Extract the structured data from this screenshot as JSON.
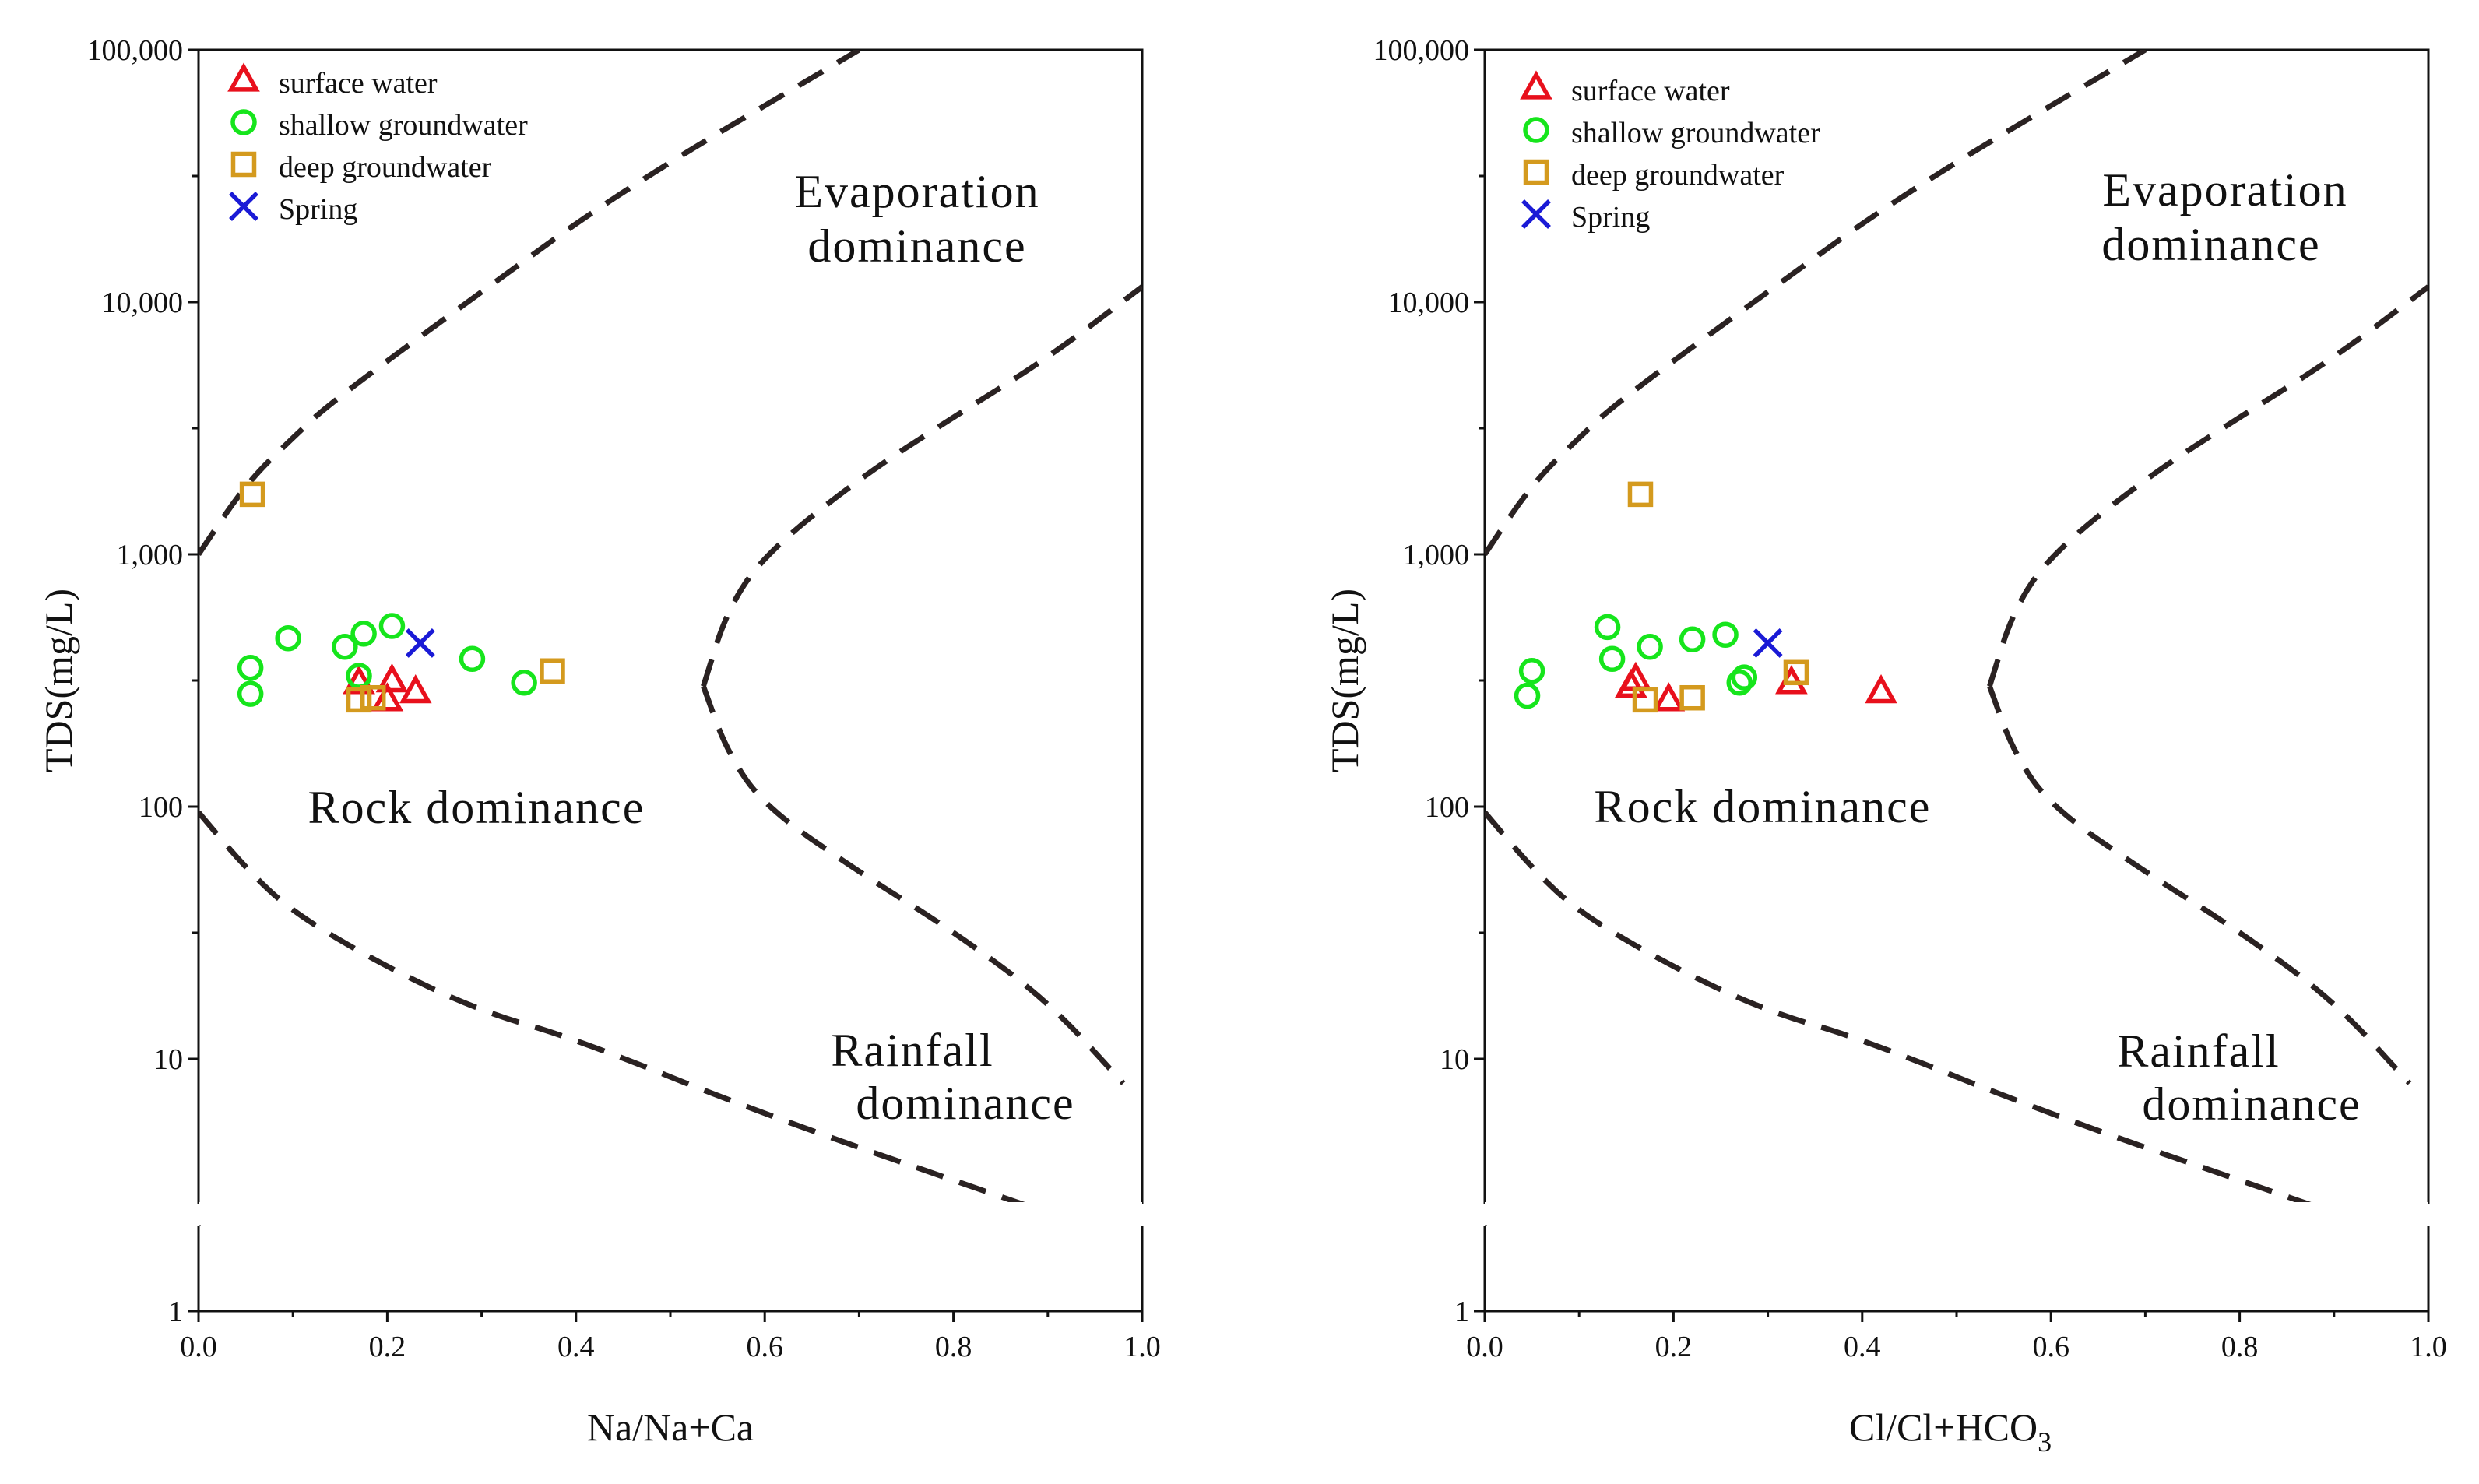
{
  "colors": {
    "surface": "#e8101c",
    "shallow": "#16e51c",
    "deep": "#d49a1e",
    "spring": "#1a1ad6",
    "boundary": "#2a2222",
    "axis": "#111111"
  },
  "chart_data": [
    {
      "type": "scatter",
      "x_log": false,
      "y_log": true,
      "xlim": [
        0.0,
        1.0
      ],
      "ylim": [
        1,
        100000
      ],
      "xlabel": "Na/Na+Ca",
      "ylabel": "TDS(mg/L)",
      "x_ticks": [
        "0.0",
        "0.2",
        "0.4",
        "0.6",
        "0.8",
        "1.0"
      ],
      "y_ticks": [
        "1",
        "10",
        "100",
        "1,000",
        "10,000",
        "100,000"
      ],
      "axis_break": "between 1 and 10",
      "legend_position": "top-left",
      "regions": {
        "evaporation": [
          "Evaporation",
          "dominance"
        ],
        "rock": "Rock dominance",
        "rainfall": [
          "Rainfall",
          "dominance"
        ]
      },
      "series": [
        {
          "name": "surface water",
          "marker": "triangle",
          "points": [
            [
              0.17,
              310
            ],
            [
              0.2,
              265
            ],
            [
              0.205,
              315
            ],
            [
              0.23,
              285
            ]
          ]
        },
        {
          "name": "shallow groundwater",
          "marker": "circle",
          "points": [
            [
              0.055,
              355
            ],
            [
              0.055,
              280
            ],
            [
              0.095,
              465
            ],
            [
              0.155,
              430
            ],
            [
              0.17,
              330
            ],
            [
              0.175,
              485
            ],
            [
              0.205,
              520
            ],
            [
              0.29,
              385
            ],
            [
              0.345,
              310
            ]
          ]
        },
        {
          "name": "deep groundwater",
          "marker": "square",
          "points": [
            [
              0.057,
              1730
            ],
            [
              0.17,
              265
            ],
            [
              0.185,
              270
            ],
            [
              0.375,
              345
            ]
          ]
        },
        {
          "name": "Spring",
          "marker": "x",
          "points": [
            [
              0.235,
              445
            ]
          ]
        }
      ],
      "boundaries": {
        "upper_left": [
          [
            0.0,
            1000
          ],
          [
            0.05,
            1900
          ],
          [
            0.1,
            2900
          ],
          [
            0.14,
            4000
          ],
          [
            0.3,
            11000
          ],
          [
            0.45,
            28000
          ],
          [
            0.7,
            100000
          ]
        ],
        "lower_left": [
          [
            0.0,
            95
          ],
          [
            0.05,
            57
          ],
          [
            0.1,
            38
          ],
          [
            0.2,
            23
          ],
          [
            0.3,
            15.4
          ],
          [
            0.4,
            12
          ],
          [
            0.6,
            6
          ],
          [
            0.88,
            2.6
          ]
        ],
        "right_upper": [
          [
            0.535,
            300
          ],
          [
            0.56,
            600
          ],
          [
            0.6,
            1000
          ],
          [
            0.7,
            2000
          ],
          [
            0.8,
            3500
          ],
          [
            0.9,
            6000
          ],
          [
            1.0,
            11500
          ]
        ],
        "right_lower": [
          [
            0.535,
            300
          ],
          [
            0.56,
            165
          ],
          [
            0.6,
            100
          ],
          [
            0.7,
            55
          ],
          [
            0.8,
            32
          ],
          [
            0.9,
            17
          ],
          [
            0.98,
            8
          ]
        ]
      }
    },
    {
      "type": "scatter",
      "x_log": false,
      "y_log": true,
      "xlim": [
        0.0,
        1.0
      ],
      "ylim": [
        1,
        100000
      ],
      "xlabel": "Cl/Cl+HCO",
      "xlabel_subscript": "3",
      "ylabel": "TDS(mg/L)",
      "x_ticks": [
        "0.0",
        "0.2",
        "0.4",
        "0.6",
        "0.8",
        "1.0"
      ],
      "y_ticks": [
        "1",
        "10",
        "100",
        "1,000",
        "10,000",
        "100,000"
      ],
      "axis_break": "between 1 and 10",
      "legend_position": "top-left",
      "regions": {
        "evaporation": [
          "Evaporation",
          "dominance"
        ],
        "rock": "Rock dominance",
        "rainfall": [
          "Rainfall",
          "dominance"
        ]
      },
      "series": [
        {
          "name": "surface water",
          "marker": "triangle",
          "points": [
            [
              0.155,
              300
            ],
            [
              0.16,
              320
            ],
            [
              0.195,
              265
            ],
            [
              0.325,
              310
            ],
            [
              0.42,
              285
            ]
          ]
        },
        {
          "name": "shallow groundwater",
          "marker": "circle",
          "points": [
            [
              0.05,
              345
            ],
            [
              0.045,
              275
            ],
            [
              0.13,
              515
            ],
            [
              0.135,
              385
            ],
            [
              0.175,
              430
            ],
            [
              0.22,
              460
            ],
            [
              0.255,
              480
            ],
            [
              0.27,
              310
            ],
            [
              0.275,
              325
            ]
          ]
        },
        {
          "name": "deep groundwater",
          "marker": "square",
          "points": [
            [
              0.165,
              1730
            ],
            [
              0.17,
              265
            ],
            [
              0.22,
              270
            ],
            [
              0.33,
              340
            ]
          ]
        },
        {
          "name": "Spring",
          "marker": "x",
          "points": [
            [
              0.3,
              445
            ]
          ]
        }
      ],
      "boundaries": {
        "upper_left": [
          [
            0.0,
            1000
          ],
          [
            0.05,
            1900
          ],
          [
            0.1,
            2900
          ],
          [
            0.14,
            4000
          ],
          [
            0.3,
            11000
          ],
          [
            0.45,
            28000
          ],
          [
            0.7,
            100000
          ]
        ],
        "lower_left": [
          [
            0.0,
            95
          ],
          [
            0.05,
            57
          ],
          [
            0.1,
            38
          ],
          [
            0.2,
            23
          ],
          [
            0.3,
            15.4
          ],
          [
            0.4,
            12
          ],
          [
            0.6,
            6
          ],
          [
            0.88,
            2.6
          ]
        ],
        "right_upper": [
          [
            0.535,
            300
          ],
          [
            0.56,
            600
          ],
          [
            0.6,
            1000
          ],
          [
            0.7,
            2000
          ],
          [
            0.8,
            3500
          ],
          [
            0.9,
            6000
          ],
          [
            1.0,
            11500
          ]
        ],
        "right_lower": [
          [
            0.535,
            300
          ],
          [
            0.56,
            165
          ],
          [
            0.6,
            100
          ],
          [
            0.7,
            55
          ],
          [
            0.8,
            32
          ],
          [
            0.9,
            17
          ],
          [
            0.98,
            8
          ]
        ]
      }
    }
  ]
}
